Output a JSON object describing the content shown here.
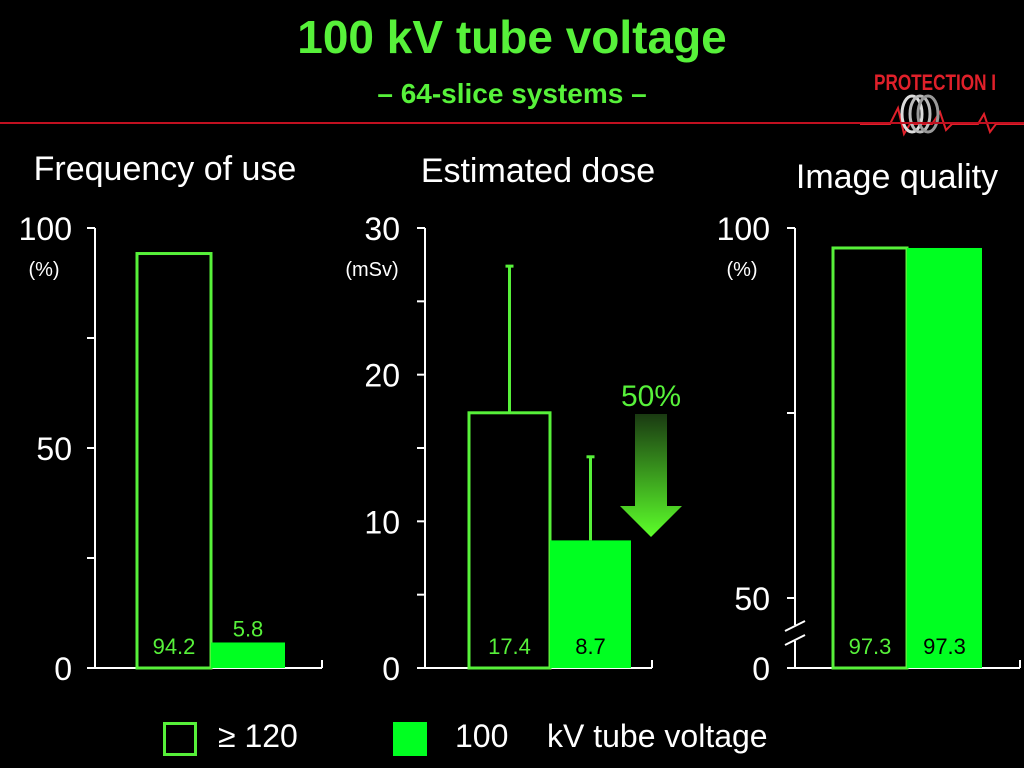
{
  "header": {
    "title": "100 kV tube voltage",
    "subtitle": "– 64-slice systems –",
    "logo_text": "PROTECTION I"
  },
  "colors": {
    "accent": "#57f13a",
    "bar_fill": "#00ff21",
    "rule": "#c01020",
    "logo": "#e0202a",
    "background": "#000000"
  },
  "chart_data": [
    {
      "type": "bar",
      "title": "Frequency of use",
      "unit_label": "(%)",
      "ylim": [
        0,
        100
      ],
      "yticks": [
        0,
        50,
        100
      ],
      "minor_ticks": [
        25,
        75
      ],
      "series": [
        {
          "name": "≥ 120",
          "values": [
            94.2
          ],
          "labels": [
            "94.2"
          ]
        },
        {
          "name": "100",
          "values": [
            5.8
          ],
          "labels": [
            "5.8"
          ]
        }
      ]
    },
    {
      "type": "bar",
      "title": "Estimated dose",
      "unit_label": "(mSv)",
      "ylim": [
        0,
        30
      ],
      "yticks": [
        0,
        10,
        20,
        30
      ],
      "minor_ticks": [
        5,
        15,
        25
      ],
      "series": [
        {
          "name": "≥ 120",
          "values": [
            17.4
          ],
          "labels": [
            "17.4"
          ],
          "error_top": [
            27.4
          ]
        },
        {
          "name": "100",
          "values": [
            8.7
          ],
          "labels": [
            "8.7"
          ],
          "error_top": [
            14.4
          ]
        }
      ],
      "annotation": {
        "text": "50%",
        "icon": "down-arrow-icon"
      }
    },
    {
      "type": "bar",
      "title": "Image quality",
      "unit_label": "(%)",
      "ylim": [
        0,
        100
      ],
      "axis_break": true,
      "yticks": [
        0,
        50,
        100
      ],
      "minor_ticks": [
        75
      ],
      "series": [
        {
          "name": "≥ 120",
          "values": [
            97.3
          ],
          "labels": [
            "97.3"
          ]
        },
        {
          "name": "100",
          "values": [
            97.3
          ],
          "labels": [
            "97.3"
          ]
        }
      ]
    }
  ],
  "legend": {
    "item1_label": "≥ 120",
    "item2_label": "100",
    "suffix": "kV tube voltage"
  }
}
